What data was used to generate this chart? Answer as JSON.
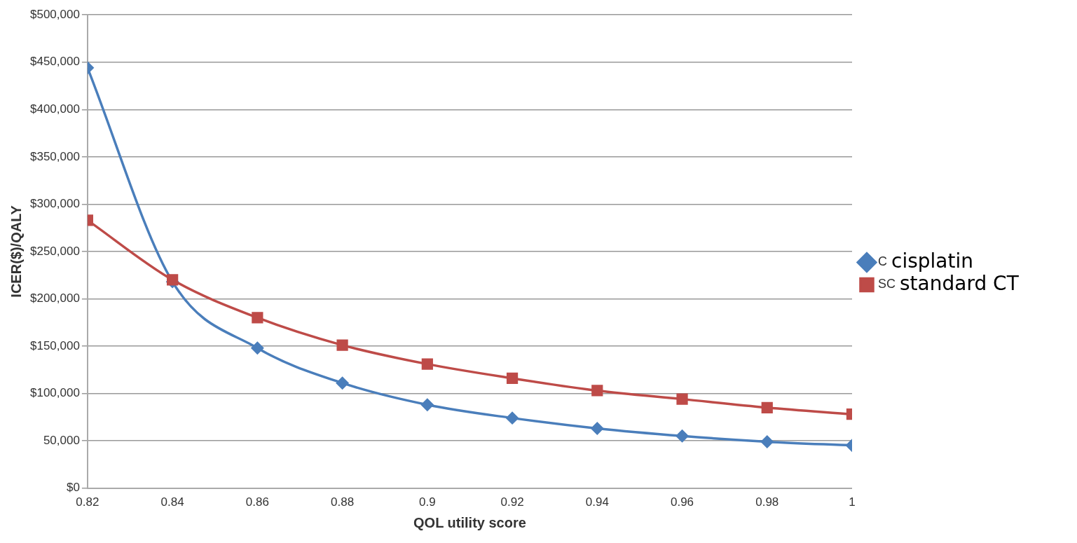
{
  "chart_data": {
    "type": "line",
    "xlabel": "QOL utility score",
    "ylabel": "ICER($)/QALY",
    "x": [
      0.82,
      0.84,
      0.86,
      0.88,
      0.9,
      0.92,
      0.94,
      0.96,
      0.98,
      1
    ],
    "series": [
      {
        "name": "C",
        "color": "#4a7ebb",
        "marker": "diamond",
        "values": [
          444000,
          218000,
          148000,
          111000,
          88000,
          74000,
          63000,
          55000,
          49000,
          45000
        ]
      },
      {
        "name": "SC",
        "color": "#be4b48",
        "marker": "square",
        "values": [
          283000,
          220000,
          180000,
          151000,
          131000,
          116000,
          103000,
          94000,
          85000,
          78000
        ]
      }
    ],
    "xlim": [
      0.82,
      1
    ],
    "xticks": [
      0.82,
      0.84,
      0.86,
      0.88,
      0.9,
      0.92,
      0.94,
      0.96,
      0.98,
      1
    ],
    "ylim": [
      0,
      500000
    ],
    "yticks": [
      {
        "value": 0,
        "label": "$0"
      },
      {
        "value": 50000,
        "label": "50,000"
      },
      {
        "value": 100000,
        "label": "$100,000"
      },
      {
        "value": 150000,
        "label": "$150,000"
      },
      {
        "value": 200000,
        "label": "$200,000"
      },
      {
        "value": 250000,
        "label": "$250,000"
      },
      {
        "value": 300000,
        "label": "$300,000"
      },
      {
        "value": 350000,
        "label": "$350,000"
      },
      {
        "value": 400000,
        "label": "$400,000"
      },
      {
        "value": 450000,
        "label": "$450,000"
      },
      {
        "value": 500000,
        "label": "$500,000"
      }
    ],
    "grid": "y",
    "legend": "right",
    "line_style": "solid",
    "annotations": [
      "cisplatin",
      "standard CT"
    ]
  }
}
